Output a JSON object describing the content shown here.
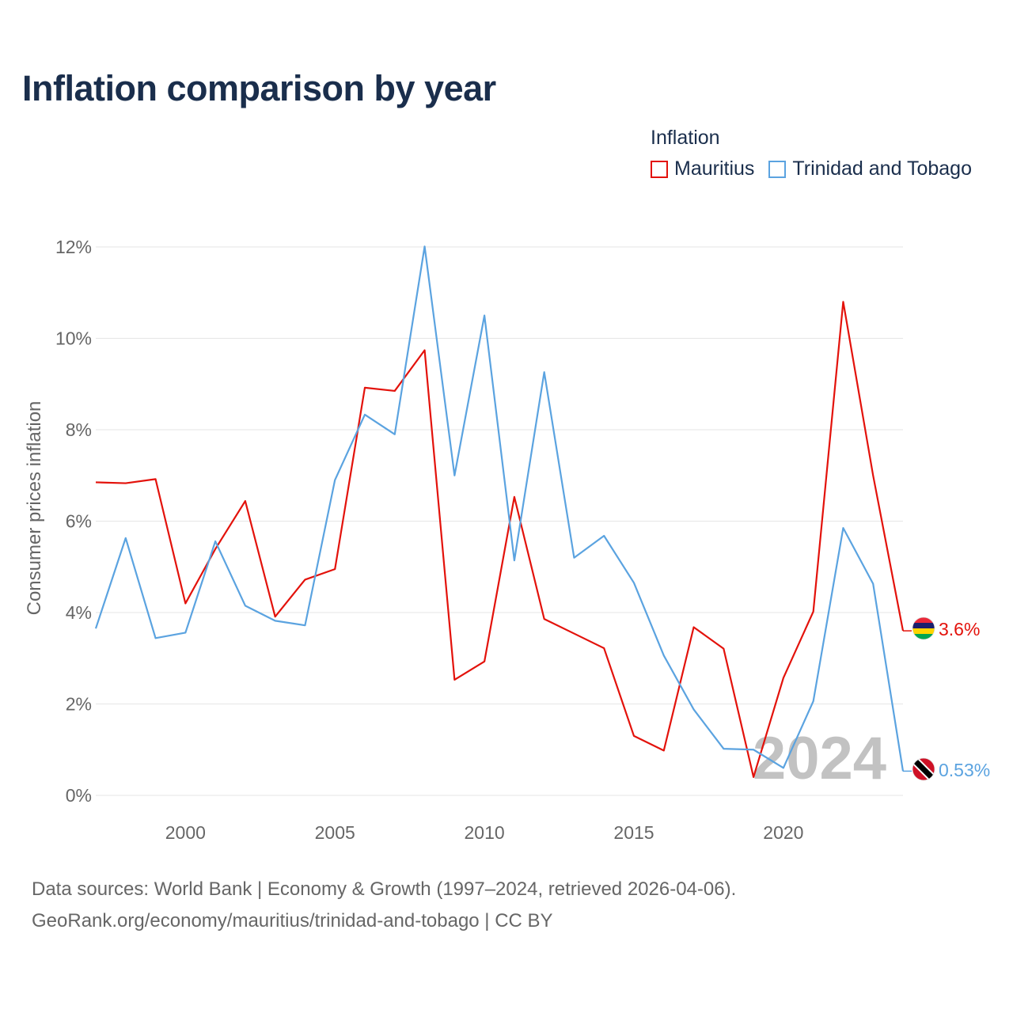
{
  "title": "Inflation comparison by year",
  "legend": {
    "title": "Inflation",
    "items": [
      {
        "label": "Mauritius",
        "color": "#e3120b"
      },
      {
        "label": "Trinidad and Tobago",
        "color": "#5ba3e0"
      }
    ]
  },
  "chart_data": {
    "type": "line",
    "title": "Inflation comparison by year",
    "xlabel": "",
    "ylabel": "Consumer prices inflation",
    "xlim": [
      1997,
      2024
    ],
    "ylim": [
      0,
      12
    ],
    "yticks": [
      0,
      2,
      4,
      6,
      8,
      10,
      12
    ],
    "ytick_labels": [
      "0%",
      "2%",
      "4%",
      "6%",
      "8%",
      "10%",
      "12%"
    ],
    "xticks": [
      2000,
      2005,
      2010,
      2015,
      2020
    ],
    "xtick_labels": [
      "2000",
      "2005",
      "2010",
      "2015",
      "2020"
    ],
    "grid": true,
    "year_watermark": "2024",
    "x": [
      1997,
      1998,
      1999,
      2000,
      2001,
      2002,
      2003,
      2004,
      2005,
      2006,
      2007,
      2008,
      2009,
      2010,
      2011,
      2012,
      2013,
      2014,
      2015,
      2016,
      2017,
      2018,
      2019,
      2020,
      2021,
      2022,
      2023,
      2024
    ],
    "series": [
      {
        "name": "Mauritius",
        "color": "#e3120b",
        "end_label": "3.6%",
        "flag": "mauritius",
        "values": [
          6.85,
          6.83,
          6.92,
          4.2,
          5.39,
          6.44,
          3.91,
          4.72,
          4.95,
          8.92,
          8.85,
          9.74,
          2.53,
          2.93,
          6.53,
          3.86,
          3.54,
          3.22,
          1.3,
          0.98,
          3.68,
          3.21,
          0.4,
          2.57,
          4.02,
          10.8,
          7.0,
          3.6
        ]
      },
      {
        "name": "Trinidad and Tobago",
        "color": "#5ba3e0",
        "end_label": "0.53%",
        "flag": "trinidad-and-tobago",
        "values": [
          3.65,
          5.63,
          3.44,
          3.56,
          5.56,
          4.15,
          3.82,
          3.72,
          6.9,
          8.33,
          7.9,
          12.01,
          7.0,
          10.5,
          5.14,
          9.26,
          5.2,
          5.68,
          4.65,
          3.06,
          1.88,
          1.02,
          1.0,
          0.6,
          2.06,
          5.85,
          4.63,
          0.53
        ]
      }
    ]
  },
  "source": {
    "line1": "Data sources: World Bank | Economy & Growth (1997–2024, retrieved 2026-04-06).",
    "line2": "GeoRank.org/economy/mauritius/trinidad-and-tobago | CC BY"
  }
}
